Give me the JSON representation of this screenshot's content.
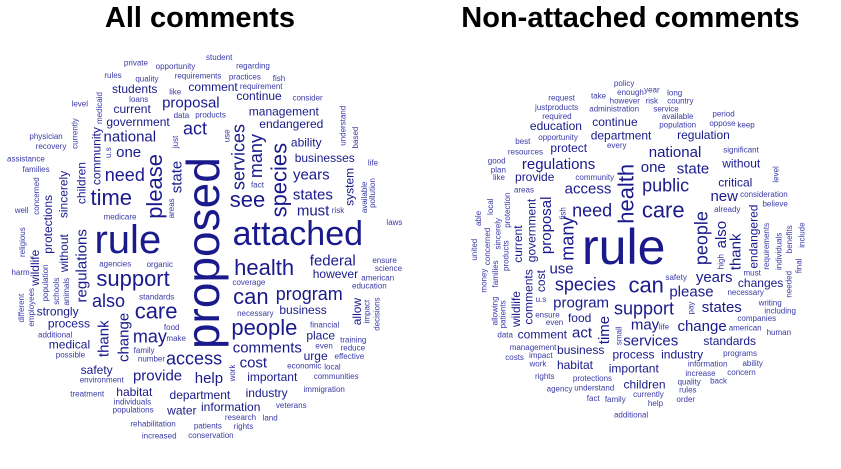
{
  "titles": {
    "all": "All comments",
    "non_attached": "Non-attached comments"
  },
  "colors": {
    "word": "#1a1a8c",
    "word_light": "#3a3aa8",
    "title": "#000000",
    "background": "#ffffff"
  },
  "all_comments_words": [
    {
      "text": "proposed",
      "weight": 10
    },
    {
      "text": "rule",
      "weight": 10
    },
    {
      "text": "attached",
      "weight": 7
    },
    {
      "text": "health",
      "weight": 6
    },
    {
      "text": "support",
      "weight": 5
    },
    {
      "text": "please",
      "weight": 5
    },
    {
      "text": "see",
      "weight": 5
    },
    {
      "text": "can",
      "weight": 5
    },
    {
      "text": "care",
      "weight": 5
    },
    {
      "text": "species",
      "weight": 5
    },
    {
      "text": "people",
      "weight": 5
    },
    {
      "text": "time",
      "weight": 5
    },
    {
      "text": "access",
      "weight": 4
    },
    {
      "text": "services",
      "weight": 4
    },
    {
      "text": "program",
      "weight": 4
    },
    {
      "text": "may",
      "weight": 4
    },
    {
      "text": "need",
      "weight": 4
    },
    {
      "text": "many",
      "weight": 4
    },
    {
      "text": "also",
      "weight": 4
    },
    {
      "text": "act",
      "weight": 4
    },
    {
      "text": "comments",
      "weight": 3
    },
    {
      "text": "regulations",
      "weight": 3
    },
    {
      "text": "federal",
      "weight": 3
    },
    {
      "text": "national",
      "weight": 3
    },
    {
      "text": "states",
      "weight": 3
    },
    {
      "text": "state",
      "weight": 3
    },
    {
      "text": "must",
      "weight": 3
    },
    {
      "text": "one",
      "weight": 3
    },
    {
      "text": "years",
      "weight": 3
    },
    {
      "text": "thank",
      "weight": 3
    },
    {
      "text": "cost",
      "weight": 3
    },
    {
      "text": "help",
      "weight": 3
    },
    {
      "text": "provide",
      "weight": 3
    },
    {
      "text": "change",
      "weight": 3
    },
    {
      "text": "proposal",
      "weight": 3
    },
    {
      "text": "endangered",
      "weight": 2
    },
    {
      "text": "important",
      "weight": 2
    },
    {
      "text": "without",
      "weight": 2
    },
    {
      "text": "business",
      "weight": 2
    },
    {
      "text": "government",
      "weight": 2
    },
    {
      "text": "department",
      "weight": 2
    },
    {
      "text": "children",
      "weight": 2
    },
    {
      "text": "businesses",
      "weight": 2
    },
    {
      "text": "strongly",
      "weight": 2
    },
    {
      "text": "comment",
      "weight": 2
    },
    {
      "text": "community",
      "weight": 2
    },
    {
      "text": "ability",
      "weight": 2
    },
    {
      "text": "management",
      "weight": 2
    },
    {
      "text": "place",
      "weight": 2
    },
    {
      "text": "protections",
      "weight": 2
    },
    {
      "text": "information",
      "weight": 2
    },
    {
      "text": "continue",
      "weight": 2
    },
    {
      "text": "however",
      "weight": 2
    },
    {
      "text": "sincerely",
      "weight": 2
    },
    {
      "text": "current",
      "weight": 2
    },
    {
      "text": "process",
      "weight": 2
    },
    {
      "text": "habitat",
      "weight": 2
    },
    {
      "text": "allow",
      "weight": 2
    },
    {
      "text": "urge",
      "weight": 2
    },
    {
      "text": "industry",
      "weight": 2
    },
    {
      "text": "medical",
      "weight": 2
    },
    {
      "text": "system",
      "weight": 2
    },
    {
      "text": "safety",
      "weight": 2
    },
    {
      "text": "students",
      "weight": 2
    },
    {
      "text": "water",
      "weight": 2
    },
    {
      "text": "wildlife",
      "weight": 2
    },
    {
      "text": "standards",
      "weight": 1
    },
    {
      "text": "organic",
      "weight": 1
    },
    {
      "text": "education",
      "weight": 1
    },
    {
      "text": "population",
      "weight": 1
    },
    {
      "text": "medicare",
      "weight": 1
    },
    {
      "text": "requirements",
      "weight": 1
    },
    {
      "text": "necessary",
      "weight": 1
    },
    {
      "text": "concerned",
      "weight": 1
    },
    {
      "text": "financial",
      "weight": 1
    },
    {
      "text": "training",
      "weight": 1
    },
    {
      "text": "additional",
      "weight": 1
    },
    {
      "text": "available",
      "weight": 1
    },
    {
      "text": "products",
      "weight": 1
    },
    {
      "text": "requirement",
      "weight": 1
    },
    {
      "text": "agencies",
      "weight": 1
    },
    {
      "text": "schools",
      "weight": 1
    },
    {
      "text": "patients",
      "weight": 1
    },
    {
      "text": "opportunity",
      "weight": 1
    },
    {
      "text": "individuals",
      "weight": 1
    },
    {
      "text": "impact",
      "weight": 1
    },
    {
      "text": "quality",
      "weight": 1
    },
    {
      "text": "coverage",
      "weight": 1
    },
    {
      "text": "economic",
      "weight": 1
    },
    {
      "text": "currently",
      "weight": 1
    },
    {
      "text": "number",
      "weight": 1
    },
    {
      "text": "practices",
      "weight": 1
    },
    {
      "text": "research",
      "weight": 1
    },
    {
      "text": "medicaid",
      "weight": 1
    },
    {
      "text": "possible",
      "weight": 1
    },
    {
      "text": "rehabilitation",
      "weight": 1
    },
    {
      "text": "environment",
      "weight": 1
    },
    {
      "text": "understand",
      "weight": 1
    },
    {
      "text": "populations",
      "weight": 1
    },
    {
      "text": "regarding",
      "weight": 1
    },
    {
      "text": "recovery",
      "weight": 1
    },
    {
      "text": "animals",
      "weight": 1
    },
    {
      "text": "american",
      "weight": 1
    },
    {
      "text": "immigration",
      "weight": 1
    },
    {
      "text": "reduce",
      "weight": 1
    },
    {
      "text": "pollution",
      "weight": 1
    },
    {
      "text": "consider",
      "weight": 1
    },
    {
      "text": "ensure",
      "weight": 1
    },
    {
      "text": "communities",
      "weight": 1
    },
    {
      "text": "employees",
      "weight": 1
    },
    {
      "text": "conservation",
      "weight": 1
    },
    {
      "text": "treatment",
      "weight": 1
    },
    {
      "text": "effective",
      "weight": 1
    },
    {
      "text": "decisions",
      "weight": 1
    },
    {
      "text": "veterans",
      "weight": 1
    },
    {
      "text": "science",
      "weight": 1
    },
    {
      "text": "student",
      "weight": 1
    },
    {
      "text": "religious",
      "weight": 1
    },
    {
      "text": "families",
      "weight": 1
    },
    {
      "text": "family",
      "weight": 1
    },
    {
      "text": "rights",
      "weight": 1
    },
    {
      "text": "areas",
      "weight": 1
    },
    {
      "text": "food",
      "weight": 1
    },
    {
      "text": "fish",
      "weight": 1
    },
    {
      "text": "land",
      "weight": 1
    },
    {
      "text": "work",
      "weight": 1
    },
    {
      "text": "risk",
      "weight": 1
    },
    {
      "text": "well",
      "weight": 1
    },
    {
      "text": "make",
      "weight": 1
    },
    {
      "text": "use",
      "weight": 1
    },
    {
      "text": "like",
      "weight": 1
    },
    {
      "text": "life",
      "weight": 1
    },
    {
      "text": "fact",
      "weight": 1
    },
    {
      "text": "just",
      "weight": 1
    },
    {
      "text": "level",
      "weight": 1
    },
    {
      "text": "local",
      "weight": 1
    },
    {
      "text": "data",
      "weight": 1
    },
    {
      "text": "u.s",
      "weight": 1
    },
    {
      "text": "laws",
      "weight": 1
    },
    {
      "text": "rules",
      "weight": 1
    },
    {
      "text": "even",
      "weight": 1
    },
    {
      "text": "based",
      "weight": 1
    },
    {
      "text": "private",
      "weight": 1
    },
    {
      "text": "physician",
      "weight": 1
    },
    {
      "text": "increased",
      "weight": 1
    },
    {
      "text": "different",
      "weight": 1
    },
    {
      "text": "loans",
      "weight": 1
    },
    {
      "text": "assistance",
      "weight": 1
    },
    {
      "text": "harm",
      "weight": 1
    }
  ],
  "non_attached_words": [
    {
      "text": "rule",
      "weight": 10
    },
    {
      "text": "health",
      "weight": 6
    },
    {
      "text": "can",
      "weight": 6
    },
    {
      "text": "care",
      "weight": 5
    },
    {
      "text": "support",
      "weight": 4
    },
    {
      "text": "people",
      "weight": 4
    },
    {
      "text": "species",
      "weight": 4
    },
    {
      "text": "need",
      "weight": 4
    },
    {
      "text": "public",
      "weight": 4
    },
    {
      "text": "many",
      "weight": 4
    },
    {
      "text": "please",
      "weight": 3
    },
    {
      "text": "program",
      "weight": 3
    },
    {
      "text": "access",
      "weight": 3
    },
    {
      "text": "also",
      "weight": 3
    },
    {
      "text": "may",
      "weight": 3
    },
    {
      "text": "use",
      "weight": 3
    },
    {
      "text": "one",
      "weight": 3
    },
    {
      "text": "time",
      "weight": 3
    },
    {
      "text": "years",
      "weight": 3
    },
    {
      "text": "services",
      "weight": 3
    },
    {
      "text": "regulations",
      "weight": 3
    },
    {
      "text": "proposal",
      "weight": 3
    },
    {
      "text": "national",
      "weight": 3
    },
    {
      "text": "change",
      "weight": 3
    },
    {
      "text": "states",
      "weight": 3
    },
    {
      "text": "thank",
      "weight": 3
    },
    {
      "text": "state",
      "weight": 3
    },
    {
      "text": "new",
      "weight": 3
    },
    {
      "text": "act",
      "weight": 3
    },
    {
      "text": "cost",
      "weight": 2
    },
    {
      "text": "food",
      "weight": 2
    },
    {
      "text": "process",
      "weight": 2
    },
    {
      "text": "department",
      "weight": 2
    },
    {
      "text": "government",
      "weight": 2
    },
    {
      "text": "business",
      "weight": 2
    },
    {
      "text": "critical",
      "weight": 2
    },
    {
      "text": "industry",
      "weight": 2
    },
    {
      "text": "endangered",
      "weight": 2
    },
    {
      "text": "important",
      "weight": 2
    },
    {
      "text": "continue",
      "weight": 2
    },
    {
      "text": "regulation",
      "weight": 2
    },
    {
      "text": "comments",
      "weight": 2
    },
    {
      "text": "comment",
      "weight": 2
    },
    {
      "text": "provide",
      "weight": 2
    },
    {
      "text": "protect",
      "weight": 2
    },
    {
      "text": "current",
      "weight": 2
    },
    {
      "text": "changes",
      "weight": 2
    },
    {
      "text": "without",
      "weight": 2
    },
    {
      "text": "habitat",
      "weight": 2
    },
    {
      "text": "wildlife",
      "weight": 2
    },
    {
      "text": "standards",
      "weight": 2
    },
    {
      "text": "children",
      "weight": 2
    },
    {
      "text": "education",
      "weight": 2
    },
    {
      "text": "requirements",
      "weight": 1
    },
    {
      "text": "administration",
      "weight": 1
    },
    {
      "text": "necessary",
      "weight": 1
    },
    {
      "text": "population",
      "weight": 1
    },
    {
      "text": "products",
      "weight": 1
    },
    {
      "text": "opportunity",
      "weight": 1
    },
    {
      "text": "protections",
      "weight": 1
    },
    {
      "text": "consideration",
      "weight": 1
    },
    {
      "text": "individuals",
      "weight": 1
    },
    {
      "text": "information",
      "weight": 1
    },
    {
      "text": "management",
      "weight": 1
    },
    {
      "text": "community",
      "weight": 1
    },
    {
      "text": "protection",
      "weight": 1
    },
    {
      "text": "companies",
      "weight": 1
    },
    {
      "text": "significant",
      "weight": 1
    },
    {
      "text": "american",
      "weight": 1
    },
    {
      "text": "families",
      "weight": 1
    },
    {
      "text": "available",
      "weight": 1
    },
    {
      "text": "increase",
      "weight": 1
    },
    {
      "text": "programs",
      "weight": 1
    },
    {
      "text": "concerned",
      "weight": 1
    },
    {
      "text": "resources",
      "weight": 1
    },
    {
      "text": "service",
      "weight": 1
    },
    {
      "text": "believe",
      "weight": 1
    },
    {
      "text": "patients",
      "weight": 1
    },
    {
      "text": "ensure",
      "weight": 1
    },
    {
      "text": "already",
      "weight": 1
    },
    {
      "text": "quality",
      "weight": 1
    },
    {
      "text": "benefits",
      "weight": 1
    },
    {
      "text": "impact",
      "weight": 1
    },
    {
      "text": "however",
      "weight": 1
    },
    {
      "text": "writing",
      "weight": 1
    },
    {
      "text": "allowing",
      "weight": 1
    },
    {
      "text": "currently",
      "weight": 1
    },
    {
      "text": "understand",
      "weight": 1
    },
    {
      "text": "required",
      "weight": 1
    },
    {
      "text": "sincerely",
      "weight": 1
    },
    {
      "text": "oppose",
      "weight": 1
    },
    {
      "text": "country",
      "weight": 1
    },
    {
      "text": "including",
      "weight": 1
    },
    {
      "text": "local",
      "weight": 1
    },
    {
      "text": "risk",
      "weight": 1
    },
    {
      "text": "rules",
      "weight": 1
    },
    {
      "text": "areas",
      "weight": 1
    },
    {
      "text": "small",
      "weight": 1
    },
    {
      "text": "family",
      "weight": 1
    },
    {
      "text": "safety",
      "weight": 1
    },
    {
      "text": "must",
      "weight": 1
    },
    {
      "text": "fish",
      "weight": 1
    },
    {
      "text": "u.s",
      "weight": 1
    },
    {
      "text": "work",
      "weight": 1
    },
    {
      "text": "like",
      "weight": 1
    },
    {
      "text": "pay",
      "weight": 1
    },
    {
      "text": "life",
      "weight": 1
    },
    {
      "text": "every",
      "weight": 1
    },
    {
      "text": "rights",
      "weight": 1
    },
    {
      "text": "needed",
      "weight": 1
    },
    {
      "text": "justproducts",
      "weight": 1
    },
    {
      "text": "even",
      "weight": 1
    },
    {
      "text": "plan",
      "weight": 1
    },
    {
      "text": "final",
      "weight": 1
    },
    {
      "text": "help",
      "weight": 1
    },
    {
      "text": "take",
      "weight": 1
    },
    {
      "text": "data",
      "weight": 1
    },
    {
      "text": "money",
      "weight": 1
    },
    {
      "text": "period",
      "weight": 1
    },
    {
      "text": "enough",
      "weight": 1
    },
    {
      "text": "agency",
      "weight": 1
    },
    {
      "text": "level",
      "weight": 1
    },
    {
      "text": "fact",
      "weight": 1
    },
    {
      "text": "human",
      "weight": 1
    },
    {
      "text": "best",
      "weight": 1
    },
    {
      "text": "high",
      "weight": 1
    },
    {
      "text": "back",
      "weight": 1
    },
    {
      "text": "costs",
      "weight": 1
    },
    {
      "text": "ability",
      "weight": 1
    },
    {
      "text": "united",
      "weight": 1
    },
    {
      "text": "concern",
      "weight": 1
    },
    {
      "text": "order",
      "weight": 1
    },
    {
      "text": "long",
      "weight": 1
    },
    {
      "text": "able",
      "weight": 1
    },
    {
      "text": "good",
      "weight": 1
    },
    {
      "text": "keep",
      "weight": 1
    },
    {
      "text": "year",
      "weight": 1
    },
    {
      "text": "include",
      "weight": 1
    },
    {
      "text": "additional",
      "weight": 1
    },
    {
      "text": "request",
      "weight": 1
    },
    {
      "text": "policy",
      "weight": 1
    }
  ]
}
